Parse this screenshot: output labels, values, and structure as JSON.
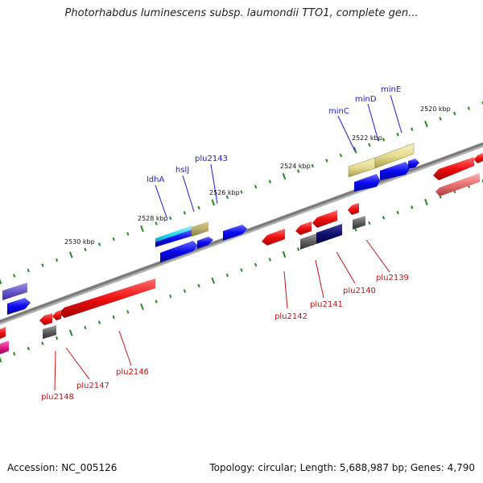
{
  "title": "Photorhabdus luminescens subsp. laumondii TTO1, complete gen...",
  "footer": {
    "accession": "Accession: NC_005126",
    "summary": "Topology: circular; Length: 5,688,987 bp; Genes: 4,790"
  },
  "scale_labels": [
    "2520 kbp",
    "2522 kbp",
    "2524 kbp",
    "2526 kbp",
    "2528 kbp",
    "2530 kbp"
  ],
  "gene_labels_top": [
    "minE",
    "minD",
    "minC",
    "plu2143",
    "hslJ",
    "ldhA"
  ],
  "gene_labels_bottom": [
    "plu2139",
    "plu2140",
    "plu2141",
    "plu2142",
    "plu2146",
    "plu2147",
    "plu2148"
  ],
  "colors": {
    "backbone": "#808080",
    "forward_gene": "#1010ee",
    "reverse_gene": "#ee1010",
    "label_top": "#1a1ae6",
    "label_bottom": "#cc1111",
    "tick": "#228b22",
    "rna": "#666666",
    "yellow_gene": "#e8e0a0",
    "navy_gene": "#101070",
    "cyan_gene": "#22d8ee",
    "purple_gene": "#6a5acd",
    "pink_gene": "#e87070",
    "magenta_gene": "#e0208a"
  }
}
